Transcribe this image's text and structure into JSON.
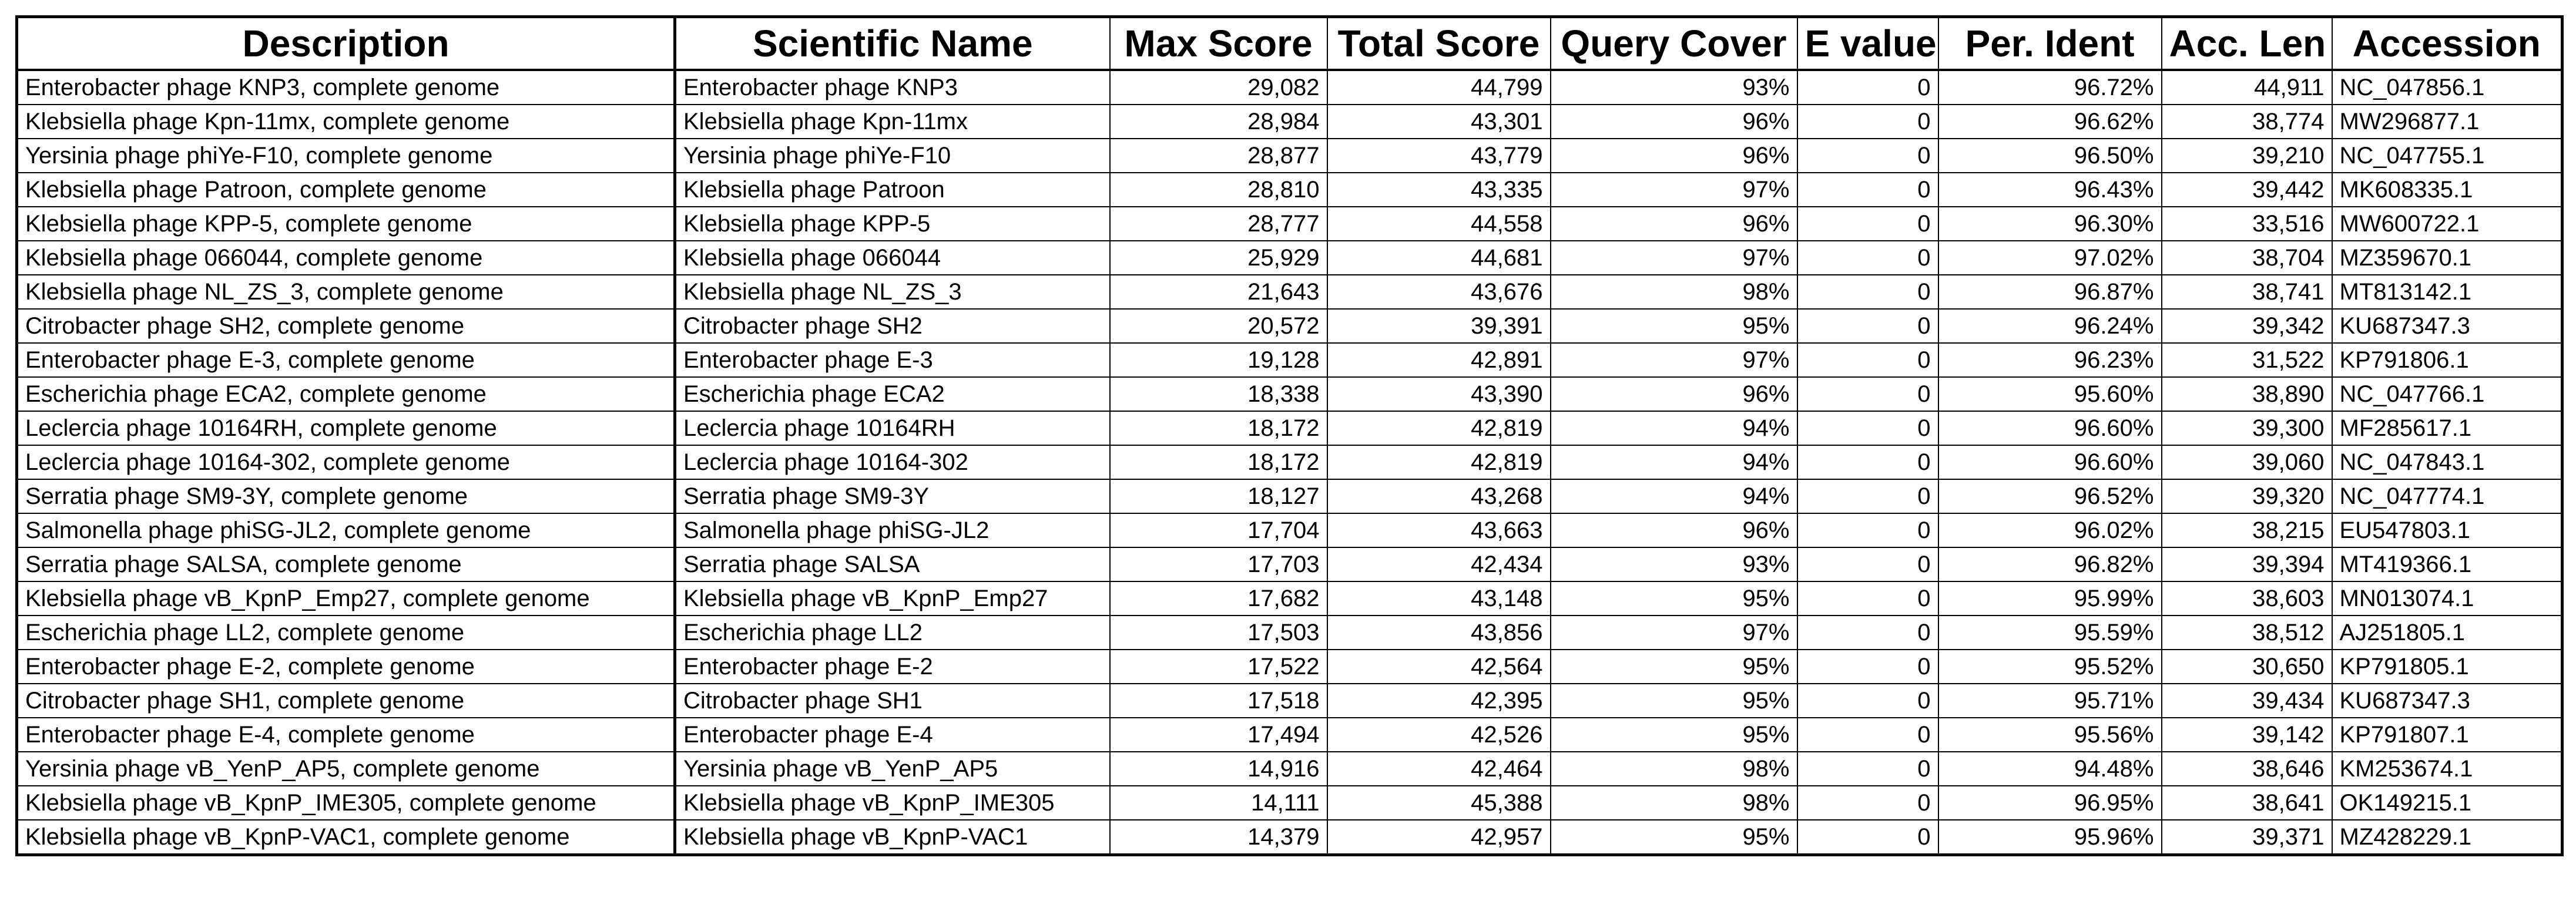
{
  "table": {
    "headers": [
      "Description",
      "Scientific Name",
      "Max Score",
      "Total Score",
      "Query Cover",
      "E value",
      "Per. Ident",
      "Acc. Len",
      "Accession"
    ],
    "rows": [
      [
        "Enterobacter phage KNP3, complete genome",
        "Enterobacter phage KNP3",
        "29,082",
        "44,799",
        "93%",
        "0",
        "96.72%",
        "44,911",
        "NC_047856.1"
      ],
      [
        "Klebsiella phage Kpn-11mx, complete genome",
        "Klebsiella phage Kpn-11mx",
        "28,984",
        "43,301",
        "96%",
        "0",
        "96.62%",
        "38,774",
        "MW296877.1"
      ],
      [
        "Yersinia phage phiYe-F10, complete genome",
        "Yersinia phage phiYe-F10",
        "28,877",
        "43,779",
        "96%",
        "0",
        "96.50%",
        "39,210",
        "NC_047755.1"
      ],
      [
        "Klebsiella phage Patroon, complete genome",
        "Klebsiella phage Patroon",
        "28,810",
        "43,335",
        "97%",
        "0",
        "96.43%",
        "39,442",
        "MK608335.1"
      ],
      [
        "Klebsiella phage KPP-5, complete genome",
        "Klebsiella phage KPP-5",
        "28,777",
        "44,558",
        "96%",
        "0",
        "96.30%",
        "33,516",
        "MW600722.1"
      ],
      [
        "Klebsiella phage 066044, complete genome",
        "Klebsiella phage 066044",
        "25,929",
        "44,681",
        "97%",
        "0",
        "97.02%",
        "38,704",
        "MZ359670.1"
      ],
      [
        "Klebsiella phage NL_ZS_3, complete genome",
        "Klebsiella phage NL_ZS_3",
        "21,643",
        "43,676",
        "98%",
        "0",
        "96.87%",
        "38,741",
        "MT813142.1"
      ],
      [
        "Citrobacter phage SH2, complete genome",
        "Citrobacter phage SH2",
        "20,572",
        "39,391",
        "95%",
        "0",
        "96.24%",
        "39,342",
        "KU687347.3"
      ],
      [
        "Enterobacter phage E-3, complete genome",
        "Enterobacter phage E-3",
        "19,128",
        "42,891",
        "97%",
        "0",
        "96.23%",
        "31,522",
        "KP791806.1"
      ],
      [
        "Escherichia phage ECA2, complete genome",
        "Escherichia phage ECA2",
        "18,338",
        "43,390",
        "96%",
        "0",
        "95.60%",
        "38,890",
        "NC_047766.1"
      ],
      [
        "Leclercia phage 10164RH, complete genome",
        "Leclercia phage 10164RH",
        "18,172",
        "42,819",
        "94%",
        "0",
        "96.60%",
        "39,300",
        "MF285617.1"
      ],
      [
        "Leclercia phage 10164-302, complete genome",
        "Leclercia phage 10164-302",
        "18,172",
        "42,819",
        "94%",
        "0",
        "96.60%",
        "39,060",
        "NC_047843.1"
      ],
      [
        "Serratia phage SM9-3Y, complete genome",
        "Serratia phage SM9-3Y",
        "18,127",
        "43,268",
        "94%",
        "0",
        "96.52%",
        "39,320",
        "NC_047774.1"
      ],
      [
        "Salmonella phage phiSG-JL2, complete genome",
        "Salmonella phage phiSG-JL2",
        "17,704",
        "43,663",
        "96%",
        "0",
        "96.02%",
        "38,215",
        "EU547803.1"
      ],
      [
        "Serratia phage SALSA, complete genome",
        "Serratia phage SALSA",
        "17,703",
        "42,434",
        "93%",
        "0",
        "96.82%",
        "39,394",
        "MT419366.1"
      ],
      [
        "Klebsiella phage vB_KpnP_Emp27, complete genome",
        "Klebsiella phage vB_KpnP_Emp27",
        "17,682",
        "43,148",
        "95%",
        "0",
        "95.99%",
        "38,603",
        "MN013074.1"
      ],
      [
        "Escherichia phage LL2, complete genome",
        "Escherichia phage LL2",
        "17,503",
        "43,856",
        "97%",
        "0",
        "95.59%",
        "38,512",
        "AJ251805.1"
      ],
      [
        "Enterobacter phage E-2, complete genome",
        "Enterobacter phage E-2",
        "17,522",
        "42,564",
        "95%",
        "0",
        "95.52%",
        "30,650",
        "KP791805.1"
      ],
      [
        "Citrobacter phage SH1, complete genome",
        "Citrobacter phage SH1",
        "17,518",
        "42,395",
        "95%",
        "0",
        "95.71%",
        "39,434",
        "KU687347.3"
      ],
      [
        "Enterobacter phage E-4, complete genome",
        "Enterobacter phage E-4",
        "17,494",
        "42,526",
        "95%",
        "0",
        "95.56%",
        "39,142",
        "KP791807.1"
      ],
      [
        "Yersinia phage vB_YenP_AP5, complete genome",
        "Yersinia phage vB_YenP_AP5",
        "14,916",
        "42,464",
        "98%",
        "0",
        "94.48%",
        "38,646",
        "KM253674.1"
      ],
      [
        "Klebsiella phage vB_KpnP_IME305, complete genome",
        "Klebsiella phage vB_KpnP_IME305",
        "14,111",
        "45,388",
        "98%",
        "0",
        "96.95%",
        "38,641",
        "OK149215.1"
      ],
      [
        "Klebsiella phage vB_KpnP-VAC1, complete genome",
        "Klebsiella phage vB_KpnP-VAC1",
        "14,379",
        "42,957",
        "95%",
        "0",
        "95.96%",
        "39,371",
        "MZ428229.1"
      ]
    ]
  }
}
